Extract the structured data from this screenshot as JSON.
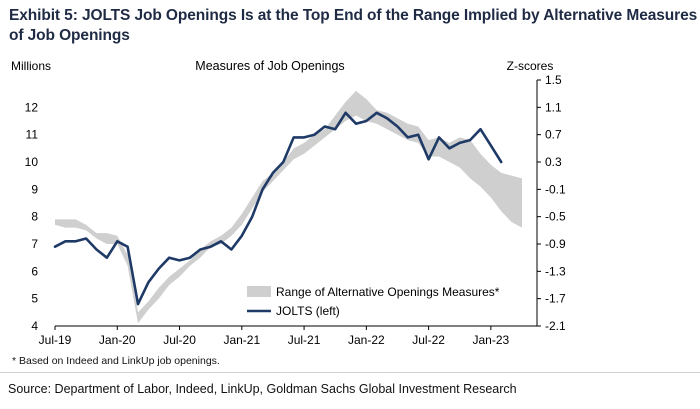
{
  "header": {
    "title": "Exhibit 5: JOLTS Job Openings Is at the Top End of the Range Implied by Alternative Measures of Job Openings"
  },
  "footer": {
    "footnote": "* Based on Indeed and LinkUp job openings.",
    "source": "Source: Department of Labor, Indeed, LinkUp, Goldman Sachs Global Investment Research"
  },
  "chart_data": {
    "type": "line",
    "title": "Measures of Job Openings",
    "ylabel_left": "Millions",
    "ylabel_right": "Z-scores",
    "ylim_left": [
      4,
      13
    ],
    "ylim_right": [
      -2.1,
      1.5
    ],
    "yticks_left": [
      "4",
      "5",
      "6",
      "7",
      "8",
      "9",
      "10",
      "11",
      "12"
    ],
    "yticks_right": [
      "-2.1",
      "-1.7",
      "-1.3",
      "-0.9",
      "-0.5",
      "-0.1",
      "0.3",
      "0.7",
      "1.1",
      "1.5"
    ],
    "xticks": [
      "Jul-19",
      "Jan-20",
      "Jul-20",
      "Jan-21",
      "Jul-21",
      "Jan-22",
      "Jul-22",
      "Jan-23"
    ],
    "xtick_months": [
      0,
      6,
      12,
      18,
      24,
      30,
      36,
      42
    ],
    "x_months": [
      0,
      45
    ],
    "legend_position": "bottom-right",
    "grid": false,
    "colors": {
      "jolts": "#1f3a66",
      "range": "#cfcfcf"
    },
    "series": [
      {
        "name": "JOLTS (left)",
        "axis": "left",
        "points": [
          [
            0,
            6.9
          ],
          [
            1,
            7.1
          ],
          [
            2,
            7.1
          ],
          [
            3,
            7.2
          ],
          [
            4,
            6.8
          ],
          [
            5,
            6.5
          ],
          [
            6,
            7.1
          ],
          [
            7,
            6.9
          ],
          [
            8,
            4.8
          ],
          [
            9,
            5.6
          ],
          [
            10,
            6.1
          ],
          [
            11,
            6.5
          ],
          [
            12,
            6.4
          ],
          [
            13,
            6.5
          ],
          [
            14,
            6.8
          ],
          [
            15,
            6.9
          ],
          [
            16,
            7.1
          ],
          [
            17,
            6.8
          ],
          [
            18,
            7.3
          ],
          [
            19,
            8.0
          ],
          [
            20,
            9.0
          ],
          [
            21,
            9.6
          ],
          [
            22,
            10.0
          ],
          [
            23,
            10.9
          ],
          [
            24,
            10.9
          ],
          [
            25,
            11.0
          ],
          [
            26,
            11.3
          ],
          [
            27,
            11.2
          ],
          [
            28,
            11.8
          ],
          [
            29,
            11.4
          ],
          [
            30,
            11.5
          ],
          [
            31,
            11.8
          ],
          [
            32,
            11.6
          ],
          [
            33,
            11.3
          ],
          [
            34,
            10.9
          ],
          [
            35,
            11.0
          ],
          [
            36,
            10.1
          ],
          [
            37,
            10.9
          ],
          [
            38,
            10.5
          ],
          [
            39,
            10.7
          ],
          [
            40,
            10.8
          ],
          [
            41,
            11.2
          ],
          [
            42,
            10.6
          ],
          [
            43,
            10.0
          ]
        ]
      },
      {
        "name": "Range of Alternative Openings Measures*",
        "axis": "left",
        "type": "band",
        "upper": [
          [
            0,
            7.9
          ],
          [
            1,
            7.9
          ],
          [
            2,
            7.9
          ],
          [
            3,
            7.7
          ],
          [
            4,
            7.4
          ],
          [
            5,
            7.4
          ],
          [
            6,
            7.3
          ],
          [
            7,
            6.6
          ],
          [
            8,
            4.5
          ],
          [
            9,
            4.9
          ],
          [
            10,
            5.4
          ],
          [
            11,
            5.8
          ],
          [
            12,
            6.1
          ],
          [
            13,
            6.4
          ],
          [
            14,
            6.8
          ],
          [
            15,
            7.1
          ],
          [
            16,
            7.3
          ],
          [
            17,
            7.6
          ],
          [
            18,
            8.1
          ],
          [
            19,
            8.7
          ],
          [
            20,
            9.3
          ],
          [
            21,
            9.6
          ],
          [
            22,
            10.0
          ],
          [
            23,
            10.5
          ],
          [
            24,
            10.7
          ],
          [
            25,
            11.0
          ],
          [
            26,
            11.2
          ],
          [
            27,
            11.7
          ],
          [
            28,
            12.2
          ],
          [
            29,
            12.6
          ],
          [
            30,
            12.3
          ],
          [
            31,
            11.9
          ],
          [
            32,
            11.8
          ],
          [
            33,
            11.6
          ],
          [
            34,
            11.4
          ],
          [
            35,
            11.3
          ],
          [
            36,
            10.8
          ],
          [
            37,
            10.9
          ],
          [
            38,
            10.7
          ],
          [
            39,
            10.9
          ],
          [
            40,
            10.8
          ],
          [
            41,
            10.3
          ],
          [
            42,
            9.9
          ],
          [
            43,
            9.6
          ],
          [
            44,
            9.5
          ],
          [
            45,
            9.4
          ]
        ],
        "lower": [
          [
            0,
            7.7
          ],
          [
            1,
            7.6
          ],
          [
            2,
            7.6
          ],
          [
            3,
            7.5
          ],
          [
            4,
            7.2
          ],
          [
            5,
            7.0
          ],
          [
            6,
            7.0
          ],
          [
            7,
            6.2
          ],
          [
            8,
            4.1
          ],
          [
            9,
            4.6
          ],
          [
            10,
            5.0
          ],
          [
            11,
            5.5
          ],
          [
            12,
            5.8
          ],
          [
            13,
            6.2
          ],
          [
            14,
            6.5
          ],
          [
            15,
            6.9
          ],
          [
            16,
            7.0
          ],
          [
            17,
            7.3
          ],
          [
            18,
            7.7
          ],
          [
            19,
            8.3
          ],
          [
            20,
            8.9
          ],
          [
            21,
            9.3
          ],
          [
            22,
            9.7
          ],
          [
            23,
            10.1
          ],
          [
            24,
            10.3
          ],
          [
            25,
            10.6
          ],
          [
            26,
            10.9
          ],
          [
            27,
            11.2
          ],
          [
            28,
            11.5
          ],
          [
            29,
            11.7
          ],
          [
            30,
            11.5
          ],
          [
            31,
            11.4
          ],
          [
            32,
            11.2
          ],
          [
            33,
            11.0
          ],
          [
            34,
            10.8
          ],
          [
            35,
            10.7
          ],
          [
            36,
            10.2
          ],
          [
            37,
            10.2
          ],
          [
            38,
            10.0
          ],
          [
            39,
            9.8
          ],
          [
            40,
            9.4
          ],
          [
            41,
            9.1
          ],
          [
            42,
            8.7
          ],
          [
            43,
            8.2
          ],
          [
            44,
            7.8
          ],
          [
            45,
            7.6
          ]
        ]
      }
    ]
  }
}
